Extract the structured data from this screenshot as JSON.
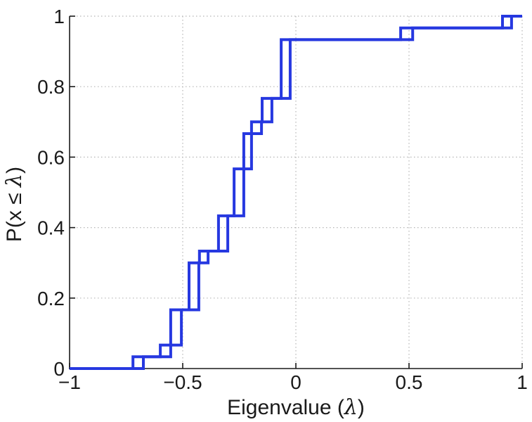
{
  "chart_data": {
    "type": "line",
    "subtype": "empirical-cdf-steps",
    "title": "",
    "xlabel": "Eigenvalue (λ)",
    "ylabel": "P(x ≤ λ)",
    "xlim": [
      -1,
      1
    ],
    "ylim": [
      0,
      1
    ],
    "x_ticks": [
      {
        "value": -1,
        "label": "−1"
      },
      {
        "value": -0.5,
        "label": "−0.5"
      },
      {
        "value": 0,
        "label": "0"
      },
      {
        "value": 0.5,
        "label": "0.5"
      },
      {
        "value": 1,
        "label": "1"
      }
    ],
    "y_ticks": [
      {
        "value": 0,
        "label": "0"
      },
      {
        "value": 0.2,
        "label": "0.2"
      },
      {
        "value": 0.4,
        "label": "0.4"
      },
      {
        "value": 0.6,
        "label": "0.6"
      },
      {
        "value": 0.8,
        "label": "0.8"
      },
      {
        "value": 1,
        "label": "1"
      }
    ],
    "grid": "dotted",
    "grid_color": "#b5b5b5",
    "axis_color": "#1a1a1a",
    "line_color": "#2638e0",
    "line_width": 4,
    "legend": "none",
    "series": [
      {
        "name": "ecdf-curve-1",
        "n_points": 30,
        "start_level": 0,
        "jumps": [
          [
            -0.72,
            0.0333
          ],
          [
            -0.599,
            0.0667
          ],
          [
            -0.553,
            0.1667
          ],
          [
            -0.472,
            0.3
          ],
          [
            -0.426,
            0.3333
          ],
          [
            -0.342,
            0.4333
          ],
          [
            -0.273,
            0.5667
          ],
          [
            -0.23,
            0.6667
          ],
          [
            -0.196,
            0.7
          ],
          [
            -0.149,
            0.7667
          ],
          [
            -0.065,
            0.9333
          ],
          [
            0.463,
            0.9667
          ],
          [
            0.913,
            1.0
          ]
        ]
      },
      {
        "name": "ecdf-curve-2",
        "n_points": 30,
        "start_level": 0,
        "jumps": [
          [
            -0.674,
            0.0333
          ],
          [
            -0.553,
            0.0667
          ],
          [
            -0.506,
            0.1667
          ],
          [
            -0.429,
            0.3
          ],
          [
            -0.388,
            0.3333
          ],
          [
            -0.301,
            0.4333
          ],
          [
            -0.23,
            0.5667
          ],
          [
            -0.196,
            0.6667
          ],
          [
            -0.152,
            0.7
          ],
          [
            -0.106,
            0.7667
          ],
          [
            -0.025,
            0.9333
          ],
          [
            0.516,
            0.9667
          ],
          [
            0.953,
            1.0
          ]
        ]
      }
    ]
  }
}
